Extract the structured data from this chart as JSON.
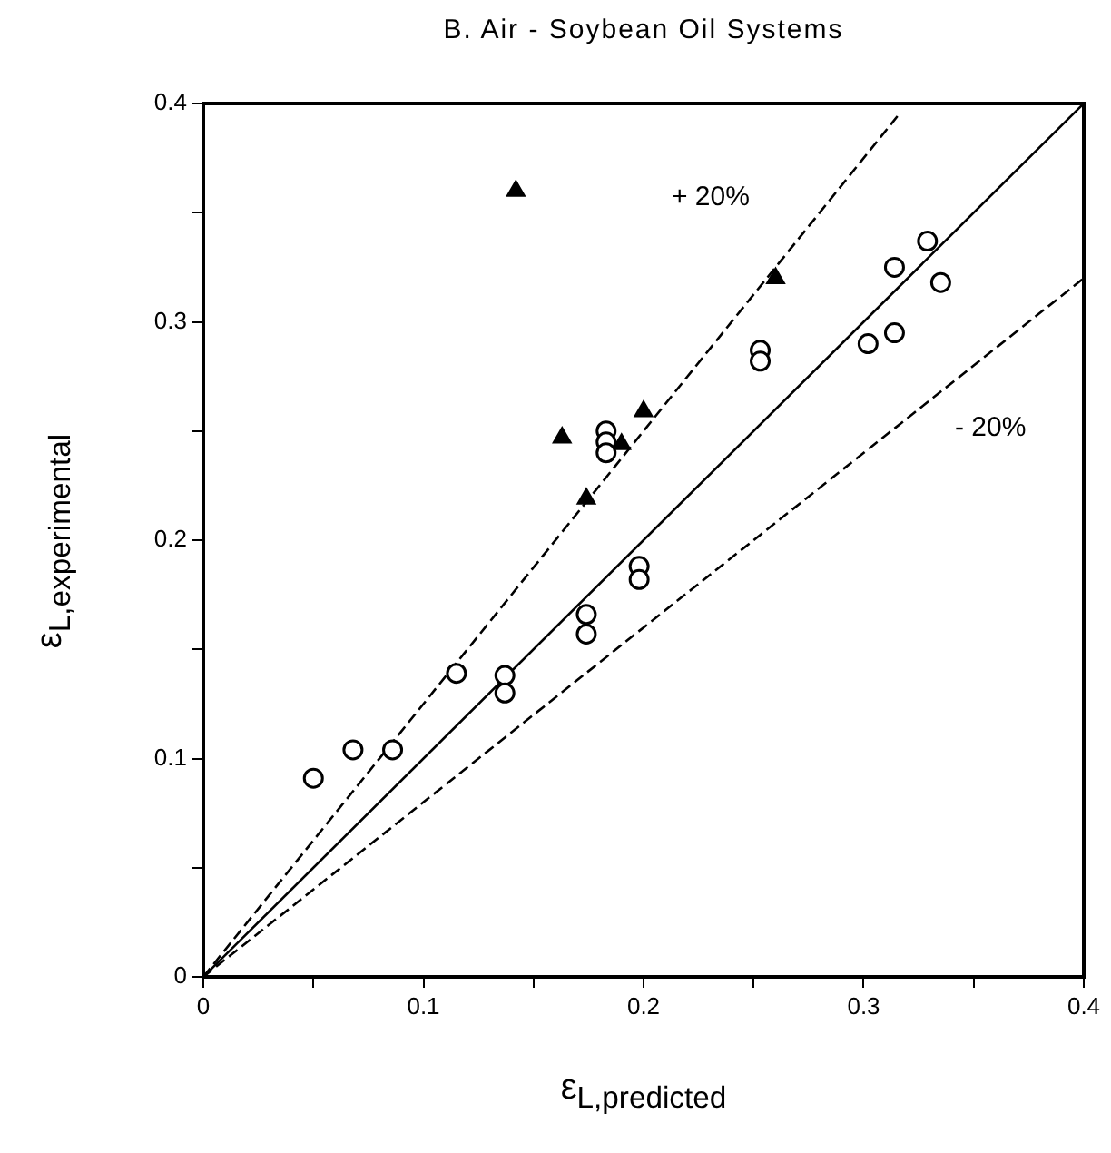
{
  "chart_data": {
    "type": "scatter",
    "title": "B. Air - Soybean Oil Systems",
    "xlabel": "ε$_{L,predicted}$",
    "ylabel": "ε$_{L,experimental}$",
    "xlim": [
      0,
      0.4
    ],
    "ylim": [
      0,
      0.4
    ],
    "xticks": [
      0,
      {
        "value": 0.05,
        "label": null
      },
      0.1,
      {
        "value": 0.15,
        "label": null
      },
      0.2,
      {
        "value": 0.25,
        "label": null
      },
      0.3,
      {
        "value": 0.35,
        "label": null
      },
      0.4
    ],
    "yticks": [
      0,
      {
        "value": 0.05,
        "label": null
      },
      0.1,
      {
        "value": 0.15,
        "label": null
      },
      0.2,
      {
        "value": 0.25,
        "label": null
      },
      0.3,
      {
        "value": 0.35,
        "label": null
      },
      0.4
    ],
    "grid": false,
    "legend": false,
    "series": [
      {
        "marker": "circle",
        "color": "#000000",
        "x": [
          0.05,
          0.068,
          0.086,
          0.115,
          0.137,
          0.137,
          0.174,
          0.174,
          0.198,
          0.198,
          0.183,
          0.183,
          0.183,
          0.253,
          0.253,
          0.302,
          0.314,
          0.314,
          0.329,
          0.335
        ],
        "values": [
          0.091,
          0.104,
          0.104,
          0.139,
          0.138,
          0.13,
          0.166,
          0.157,
          0.188,
          0.182,
          0.25,
          0.245,
          0.24,
          0.287,
          0.282,
          0.29,
          0.295,
          0.325,
          0.337,
          0.318
        ]
      },
      {
        "marker": "triangle",
        "color": "#000000",
        "x": [
          0.142,
          0.163,
          0.174,
          0.19,
          0.2,
          0.26
        ],
        "values": [
          0.36,
          0.247,
          0.219,
          0.244,
          0.259,
          0.32
        ]
      },
      {
        "type": "line",
        "marker": "none",
        "line_style": "solid",
        "color": "#000000",
        "x": [
          0,
          0.4
        ],
        "values": [
          0,
          0.4
        ]
      },
      {
        "type": "line",
        "marker": "none",
        "line_style": "dashed",
        "color": "#000000",
        "x": [
          0,
          0.316
        ],
        "values": [
          0,
          0.395
        ]
      },
      {
        "type": "line",
        "marker": "none",
        "line_style": "dashed",
        "color": "#000000",
        "x": [
          0,
          0.4
        ],
        "values": [
          0,
          0.32
        ]
      }
    ],
    "annotations": [
      "+ 20%",
      "- 20%"
    ]
  }
}
